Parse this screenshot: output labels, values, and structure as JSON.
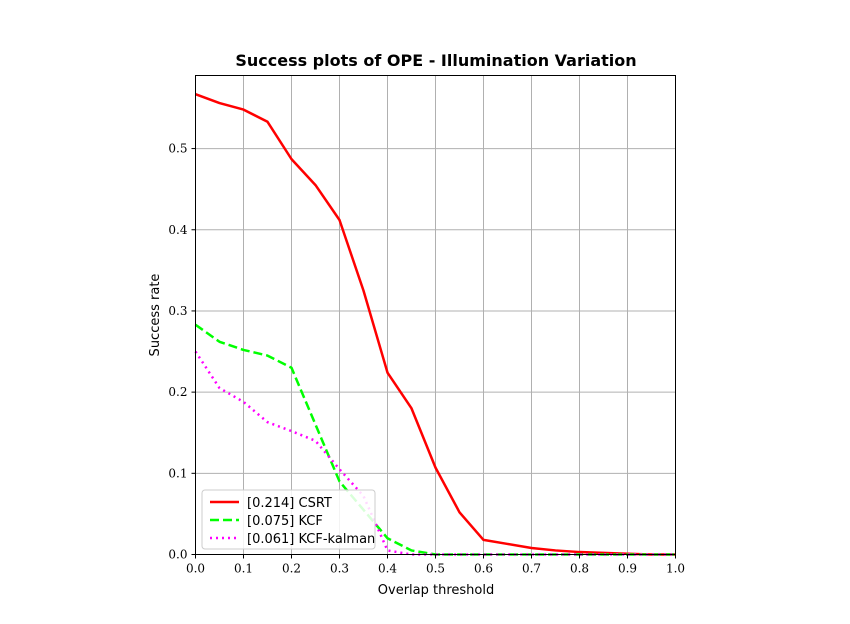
{
  "chart_data": {
    "type": "line",
    "title": "Success plots of OPE - Illumination Variation",
    "xlabel": "Overlap threshold",
    "ylabel": "Success rate",
    "xlim": [
      0.0,
      1.0
    ],
    "ylim": [
      0.0,
      0.59
    ],
    "grid": true,
    "legend_position": "lower-left",
    "xticks": [
      "0.0",
      "0.1",
      "0.2",
      "0.3",
      "0.4",
      "0.5",
      "0.6",
      "0.7",
      "0.8",
      "0.9",
      "1.0"
    ],
    "yticks": [
      "0.0",
      "0.1",
      "0.2",
      "0.3",
      "0.4",
      "0.5"
    ],
    "x": [
      0.0,
      0.05,
      0.1,
      0.15,
      0.2,
      0.25,
      0.3,
      0.35,
      0.4,
      0.45,
      0.5,
      0.55,
      0.6,
      0.65,
      0.7,
      0.75,
      0.8,
      0.85,
      0.9,
      0.95,
      1.0
    ],
    "series": [
      {
        "name": "[0.214] CSRT",
        "color": "#ff0000",
        "style": "solid",
        "values": [
          0.567,
          0.556,
          0.548,
          0.533,
          0.487,
          0.455,
          0.412,
          0.325,
          0.224,
          0.18,
          0.107,
          0.052,
          0.018,
          0.013,
          0.008,
          0.005,
          0.003,
          0.002,
          0.001,
          0.0,
          0.0
        ]
      },
      {
        "name": "[0.075] KCF",
        "color": "#00ff00",
        "style": "dashed",
        "values": [
          0.283,
          0.262,
          0.252,
          0.245,
          0.23,
          0.16,
          0.09,
          0.055,
          0.02,
          0.005,
          0.0,
          0.0,
          0.0,
          0.0,
          0.0,
          0.0,
          0.0,
          0.0,
          0.0,
          0.0,
          0.0
        ]
      },
      {
        "name": "[0.061] KCF-kalman",
        "color": "#ff00ff",
        "style": "dotted",
        "values": [
          0.25,
          0.205,
          0.188,
          0.163,
          0.152,
          0.14,
          0.105,
          0.072,
          0.005,
          0.0,
          0.0,
          0.0,
          0.0,
          0.0,
          0.0,
          0.0,
          0.0,
          0.0,
          0.0,
          0.0,
          0.0
        ]
      }
    ]
  }
}
